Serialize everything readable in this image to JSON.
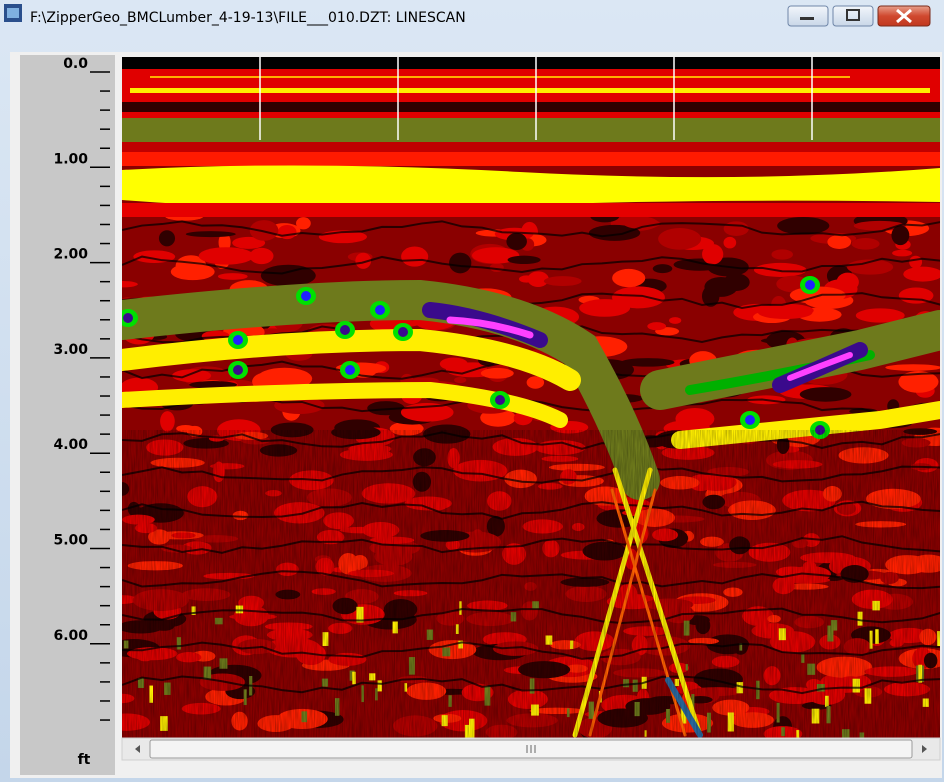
{
  "window": {
    "title": "F:\\ZipperGeo_BMCLumber_4-19-13\\FILE___010.DZT:  LINESCAN"
  },
  "depth_scale": {
    "labels": [
      "0.0",
      "1.00",
      "2.00",
      "3.00",
      "4.00",
      "5.00",
      "6.00"
    ],
    "unit": "ft"
  }
}
